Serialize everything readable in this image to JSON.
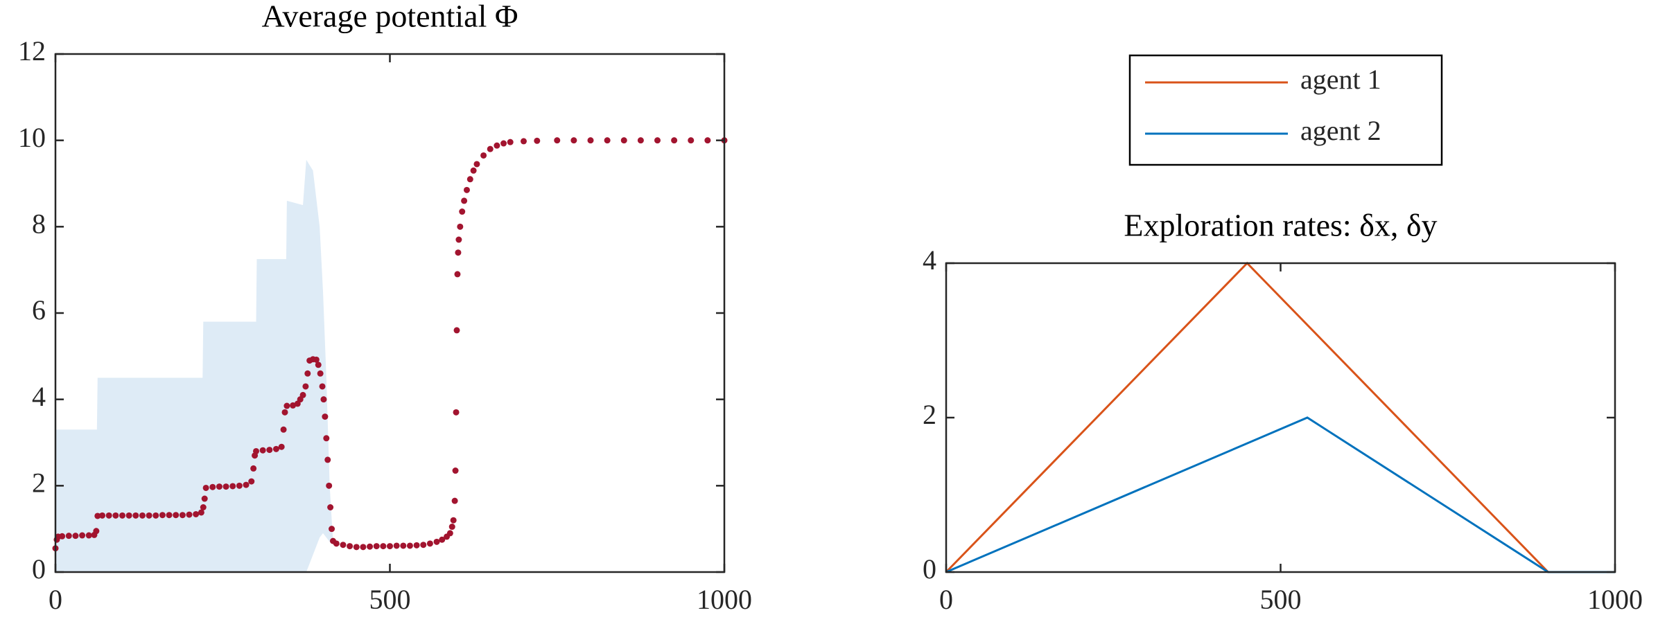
{
  "chart_data": [
    {
      "type": "scatter",
      "title": "Average potential Φ",
      "color": "#a2142f",
      "x": [
        0,
        2,
        4,
        10,
        20,
        30,
        40,
        50,
        58,
        61,
        63,
        70,
        80,
        90,
        100,
        110,
        120,
        130,
        140,
        150,
        160,
        170,
        180,
        190,
        200,
        210,
        218,
        221,
        223,
        225,
        235,
        245,
        255,
        265,
        275,
        285,
        293,
        296,
        298,
        300,
        310,
        320,
        330,
        338,
        341,
        343,
        346,
        355,
        362,
        366,
        370,
        374,
        377,
        380,
        385,
        390,
        393,
        396,
        399,
        401,
        403,
        405,
        407,
        409,
        411,
        413,
        415,
        420,
        430,
        440,
        450,
        460,
        470,
        480,
        490,
        500,
        510,
        520,
        530,
        540,
        550,
        560,
        570,
        578,
        585,
        590,
        593,
        595,
        597,
        598,
        599,
        600,
        601,
        602,
        603,
        605,
        608,
        611,
        615,
        620,
        625,
        630,
        640,
        650,
        660,
        670,
        680,
        700,
        720,
        750,
        775,
        800,
        825,
        850,
        875,
        900,
        925,
        950,
        975,
        1000
      ],
      "values": [
        0.55,
        0.75,
        0.82,
        0.83,
        0.84,
        0.84,
        0.85,
        0.85,
        0.86,
        0.95,
        1.3,
        1.31,
        1.31,
        1.31,
        1.31,
        1.31,
        1.31,
        1.31,
        1.31,
        1.31,
        1.32,
        1.32,
        1.32,
        1.32,
        1.33,
        1.34,
        1.38,
        1.5,
        1.7,
        1.95,
        1.97,
        1.98,
        1.98,
        1.99,
        2.0,
        2.02,
        2.1,
        2.4,
        2.7,
        2.8,
        2.82,
        2.83,
        2.85,
        2.9,
        3.3,
        3.7,
        3.85,
        3.86,
        3.9,
        4.0,
        4.1,
        4.3,
        4.6,
        4.9,
        4.93,
        4.92,
        4.8,
        4.6,
        4.3,
        4.0,
        3.6,
        3.1,
        2.6,
        2.0,
        1.5,
        1.0,
        0.72,
        0.66,
        0.63,
        0.6,
        0.58,
        0.58,
        0.59,
        0.6,
        0.6,
        0.6,
        0.61,
        0.61,
        0.61,
        0.62,
        0.63,
        0.66,
        0.7,
        0.75,
        0.82,
        0.9,
        1.05,
        1.2,
        1.65,
        2.35,
        3.7,
        5.6,
        6.9,
        7.4,
        7.7,
        8.0,
        8.35,
        8.6,
        8.85,
        9.1,
        9.3,
        9.45,
        9.65,
        9.8,
        9.88,
        9.93,
        9.96,
        9.98,
        9.99,
        10,
        10,
        10,
        10,
        10,
        10,
        10,
        10,
        10,
        10,
        10
      ],
      "band": {
        "color": "#deebf6",
        "x": [
          0,
          62,
          63,
          220,
          221,
          300,
          301,
          345,
          346,
          370,
          375,
          385,
          395,
          400,
          405,
          410,
          415
        ],
        "upper": [
          3.3,
          3.3,
          4.5,
          4.5,
          5.8,
          5.8,
          7.25,
          7.25,
          8.6,
          8.5,
          9.55,
          9.3,
          8.0,
          6.5,
          4.5,
          2.0,
          0.7
        ],
        "lower": [
          0,
          0,
          0,
          0,
          0,
          0,
          0,
          0,
          0,
          0,
          0,
          0.4,
          0.8,
          0.9,
          0.8,
          0.7,
          0.65
        ]
      },
      "xlim": [
        0,
        1000
      ],
      "xticks": [
        0,
        500,
        1000
      ],
      "ylim": [
        0,
        12
      ],
      "yticks": [
        0,
        2,
        4,
        6,
        8,
        10,
        12
      ]
    },
    {
      "type": "line",
      "title": "Exploration rates: δx, δy",
      "legend": "north-outside",
      "series": [
        {
          "name": "agent 1",
          "color": "#d95319",
          "x": [
            0,
            450,
            900,
            1000
          ],
          "values": [
            0,
            4,
            0,
            0
          ]
        },
        {
          "name": "agent 2",
          "color": "#0072bd",
          "x": [
            0,
            540,
            900,
            1000
          ],
          "values": [
            0,
            2,
            0,
            0
          ]
        }
      ],
      "xlim": [
        0,
        1000
      ],
      "xticks": [
        0,
        500,
        1000
      ],
      "ylim": [
        0,
        4
      ],
      "yticks": [
        0,
        2,
        4
      ]
    }
  ]
}
